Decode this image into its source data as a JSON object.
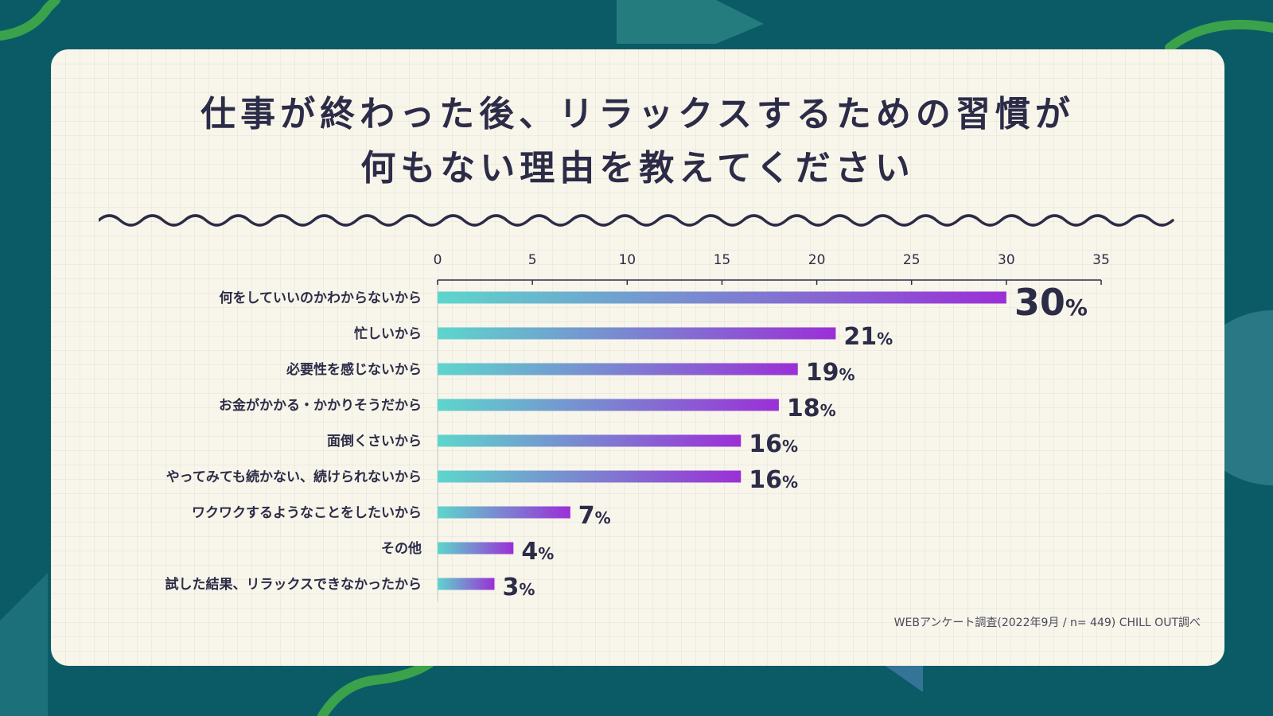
{
  "title_line1": "仕事が終わった後、リラックスするための習慣が",
  "title_line2": "何もない理由を教えてください",
  "source": "WEBアンケート調査(2022年9月 / n= 449) CHILL OUT調べ",
  "colors": {
    "background": "#0b5b66",
    "card": "#f8f5ea",
    "text": "#2c2c48",
    "bar_start": "#5dd6cc",
    "bar_end": "#9b2fd6"
  },
  "chart_data": {
    "type": "bar",
    "orientation": "horizontal",
    "categories": [
      "何をしていいのかわからないから",
      "忙しいから",
      "必要性を感じないから",
      "お金がかかる・かかりそうだから",
      "面倒くさいから",
      "やってみても続かない、続けられないから",
      "ワクワクするようなことをしたいから",
      "その他",
      "試した結果、リラックスできなかったから"
    ],
    "values": [
      30,
      21,
      19,
      18,
      16,
      16,
      7,
      4,
      3
    ],
    "value_suffix": "%",
    "xlim": [
      0,
      35
    ],
    "xticks": [
      0,
      5,
      10,
      15,
      20,
      25,
      30,
      35
    ],
    "axis_position": "top",
    "grid": false,
    "legend": "none"
  }
}
